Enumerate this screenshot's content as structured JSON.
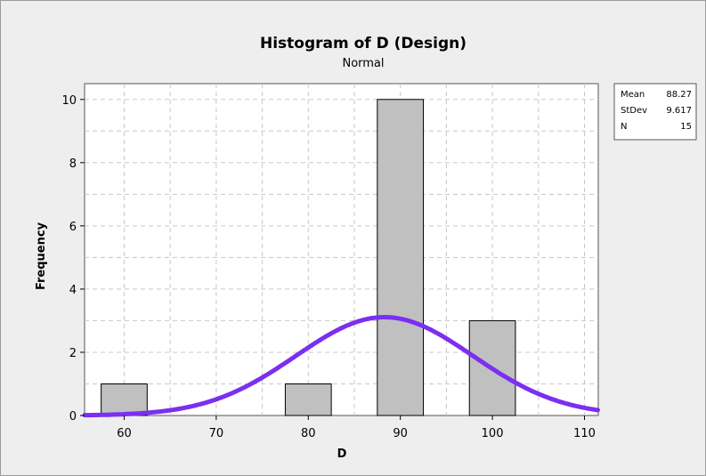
{
  "chart_data": {
    "type": "bar",
    "title": "Histogram of D (Design)",
    "subtitle": "Normal",
    "xlabel": "D",
    "ylabel": "Frequency",
    "xlim": [
      55.7,
      111.5
    ],
    "ylim": [
      0,
      10.5
    ],
    "x_ticks": [
      60,
      70,
      80,
      90,
      100,
      110
    ],
    "y_ticks": [
      0,
      2,
      4,
      6,
      8,
      10
    ],
    "bins": [
      {
        "center": 60,
        "width": 5,
        "count": 1
      },
      {
        "center": 80,
        "width": 5,
        "count": 1
      },
      {
        "center": 90,
        "width": 5,
        "count": 10
      },
      {
        "center": 100,
        "width": 5,
        "count": 3
      }
    ],
    "fit": {
      "distribution": "Normal",
      "mean": 88.27,
      "stdev": 9.617,
      "n": 15
    },
    "grid": true,
    "legend_position": "top-right",
    "bar_color": "#c0c0c0",
    "curve_color": "#7b2ff0",
    "stats": [
      {
        "label": "Mean",
        "value": "88.27"
      },
      {
        "label": "StDev",
        "value": "9.617"
      },
      {
        "label": "N",
        "value": "15"
      }
    ]
  }
}
